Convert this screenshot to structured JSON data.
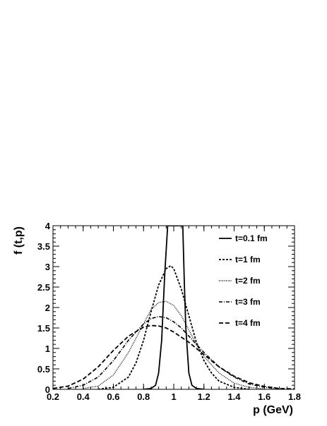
{
  "chart_data": {
    "type": "line",
    "title": "",
    "xlabel": "p (GeV)",
    "ylabel": "f (t,p)",
    "xlim": [
      0.2,
      1.8
    ],
    "ylim": [
      0,
      4
    ],
    "x_ticks": [
      0.2,
      0.4,
      0.6,
      0.8,
      1.0,
      1.2,
      1.4,
      1.6,
      1.8
    ],
    "x_tick_labels": [
      "0.2",
      "0.4",
      "0.6",
      "0.8",
      "1",
      "1.2",
      "1.4",
      "1.6",
      "1.8"
    ],
    "y_ticks": [
      0,
      0.5,
      1,
      1.5,
      2,
      2.5,
      3,
      3.5,
      4
    ],
    "y_tick_labels": [
      "0",
      "0.5",
      "1",
      "1.5",
      "2",
      "2.5",
      "3",
      "3.5",
      "4"
    ],
    "grid": false,
    "legend_position": "top-right",
    "series": [
      {
        "name": "t=0.1 fm",
        "dash": "solid",
        "x": [
          0.8,
          0.85,
          0.88,
          0.9,
          0.92,
          0.94,
          0.96,
          0.97,
          0.98,
          0.99,
          1.0,
          1.01,
          1.02,
          1.03,
          1.04,
          1.05,
          1.06,
          1.07,
          1.08,
          1.1,
          1.12,
          1.15,
          1.2
        ],
        "y": [
          0.0,
          0.02,
          0.1,
          0.4,
          1.2,
          2.8,
          4.0,
          4.0,
          4.0,
          4.0,
          4.0,
          4.0,
          4.0,
          4.0,
          4.0,
          4.0,
          4.0,
          2.6,
          1.5,
          0.4,
          0.1,
          0.02,
          0.0
        ]
      },
      {
        "name": "t=1 fm",
        "dash": "dashed-short",
        "x": [
          0.5,
          0.6,
          0.7,
          0.75,
          0.8,
          0.85,
          0.9,
          0.95,
          0.98,
          1.0,
          1.05,
          1.1,
          1.15,
          1.2,
          1.25,
          1.3,
          1.4,
          1.5
        ],
        "y": [
          0.0,
          0.05,
          0.3,
          0.65,
          1.2,
          1.9,
          2.55,
          2.95,
          3.02,
          2.95,
          2.45,
          1.8,
          1.15,
          0.7,
          0.4,
          0.2,
          0.05,
          0.0
        ]
      },
      {
        "name": "t=2 fm",
        "dash": "dotted",
        "x": [
          0.4,
          0.5,
          0.6,
          0.7,
          0.8,
          0.85,
          0.9,
          0.95,
          1.0,
          1.05,
          1.1,
          1.15,
          1.2,
          1.3,
          1.4,
          1.5,
          1.6
        ],
        "y": [
          0.02,
          0.08,
          0.35,
          0.9,
          1.6,
          1.95,
          2.12,
          2.15,
          2.05,
          1.8,
          1.45,
          1.1,
          0.8,
          0.4,
          0.15,
          0.05,
          0.01
        ]
      },
      {
        "name": "t=3 fm",
        "dash": "dash-dot",
        "x": [
          0.3,
          0.4,
          0.5,
          0.6,
          0.7,
          0.8,
          0.85,
          0.9,
          0.95,
          1.0,
          1.05,
          1.1,
          1.2,
          1.3,
          1.4,
          1.5,
          1.6,
          1.7
        ],
        "y": [
          0.02,
          0.1,
          0.3,
          0.7,
          1.2,
          1.6,
          1.73,
          1.78,
          1.75,
          1.65,
          1.5,
          1.3,
          0.9,
          0.55,
          0.3,
          0.13,
          0.05,
          0.01
        ]
      },
      {
        "name": "t=4 fm",
        "dash": "dashed",
        "x": [
          0.2,
          0.3,
          0.4,
          0.5,
          0.6,
          0.7,
          0.8,
          0.85,
          0.9,
          0.95,
          1.0,
          1.1,
          1.2,
          1.3,
          1.4,
          1.5,
          1.6,
          1.7,
          1.8
        ],
        "y": [
          0.02,
          0.08,
          0.25,
          0.55,
          0.95,
          1.3,
          1.52,
          1.56,
          1.55,
          1.5,
          1.4,
          1.15,
          0.85,
          0.55,
          0.32,
          0.16,
          0.07,
          0.02,
          0.01
        ]
      }
    ]
  }
}
